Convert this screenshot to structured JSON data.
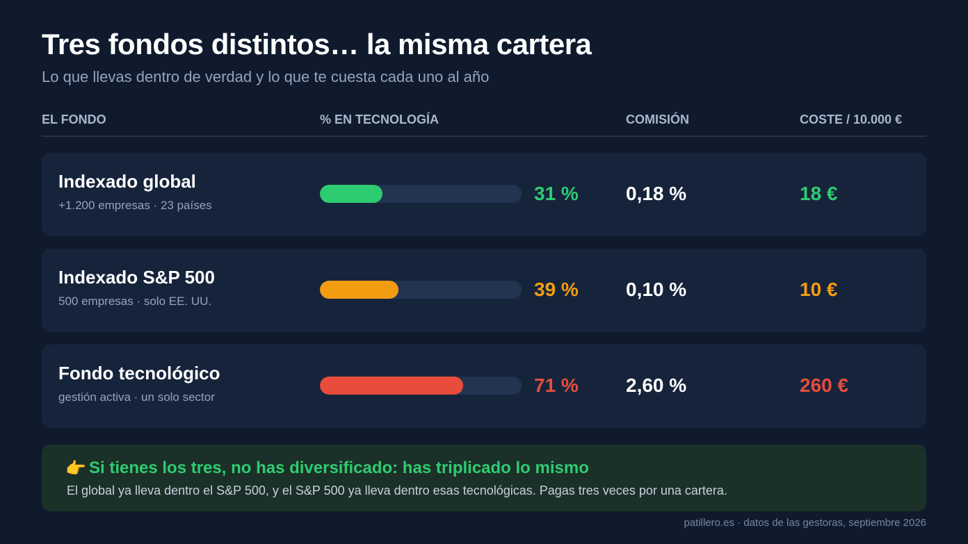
{
  "title": "Tres fondos distintos… la misma cartera",
  "subtitle": "Lo que llevas dentro de verdad y lo que te cuesta cada uno al año",
  "headers": {
    "fund": "EL FONDO",
    "tech": "% EN TECNOLOGÍA",
    "fee": "COMISIÓN",
    "cost": "COSTE / 10.000 €"
  },
  "chart_data": {
    "type": "table",
    "columns": [
      "EL FONDO",
      "% EN TECNOLOGÍA",
      "COMISIÓN",
      "COSTE / 10.000 €"
    ],
    "rows": [
      {
        "name": "Indexado global",
        "description": "+1.200 empresas · 23 países",
        "tech_percent": 31,
        "tech_label": "31 %",
        "fee": "0,18 %",
        "cost": "18 €",
        "color": "#2ecc71"
      },
      {
        "name": "Indexado S&P 500",
        "description": "500 empresas · solo EE. UU.",
        "tech_percent": 39,
        "tech_label": "39 %",
        "fee": "0,10 %",
        "cost": "10 €",
        "color": "#f39c12"
      },
      {
        "name": "Fondo tecnológico",
        "description": "gestión activa · un solo sector",
        "tech_percent": 71,
        "tech_label": "71 %",
        "fee": "2,60 %",
        "cost": "260 €",
        "color": "#e74c3c"
      }
    ],
    "bar_max": 100
  },
  "callout": {
    "icon": "pointing-hand-icon",
    "icon_glyph": "👉",
    "headline": "Si tienes los tres, no has diversificado: has triplicado lo mismo",
    "text": "El global ya lleva dentro el S&P 500, y el S&P 500 ya lleva dentro esas tecnológicas. Pagas tres veces por una cartera."
  },
  "footer": "patillero.es · datos de las gestoras, septiembre 2026"
}
